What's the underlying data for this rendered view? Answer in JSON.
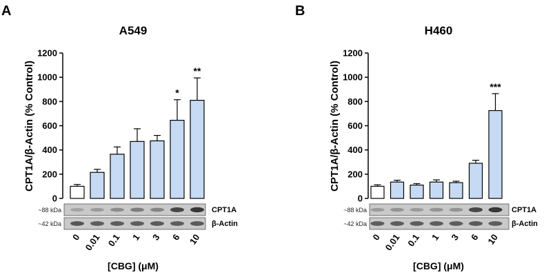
{
  "chart_data": [
    {
      "type": "bar",
      "panel": "A",
      "title": "A549",
      "ylabel": "CPT1A/β-Actin (% Control)",
      "xlabel": "[CBG] (μM)",
      "categories": [
        "0",
        "0.01",
        "0.1",
        "1",
        "3",
        "6",
        "10"
      ],
      "values": [
        100,
        215,
        365,
        470,
        475,
        645,
        810
      ],
      "errors": [
        15,
        25,
        60,
        105,
        45,
        170,
        185
      ],
      "significance": [
        "",
        "",
        "",
        "",
        "",
        "*",
        "**"
      ],
      "ylim": [
        0,
        1200
      ],
      "yticks": [
        0,
        200,
        400,
        600,
        800,
        1000,
        1200
      ],
      "bar_colors": [
        "#ffffff",
        "#c6dbf3",
        "#c6dbf3",
        "#c6dbf3",
        "#c6dbf3",
        "#c6dbf3",
        "#c6dbf3"
      ],
      "blot": {
        "rows": [
          {
            "kda": "~88 kDa",
            "protein": "CPT1A",
            "intensity": [
              0.25,
              0.3,
              0.4,
              0.5,
              0.45,
              0.85,
              0.95
            ]
          },
          {
            "kda": "~42 kDa",
            "protein": "β-Actin",
            "intensity": [
              0.75,
              0.7,
              0.7,
              0.7,
              0.72,
              0.7,
              0.72
            ]
          }
        ]
      }
    },
    {
      "type": "bar",
      "panel": "B",
      "title": "H460",
      "ylabel": "CPT1A/β-Actin (% Control)",
      "xlabel": "[CBG] (μM)",
      "categories": [
        "0",
        "0.01",
        "0.1",
        "1",
        "3",
        "6",
        "10"
      ],
      "values": [
        100,
        135,
        110,
        135,
        130,
        290,
        725
      ],
      "errors": [
        12,
        15,
        12,
        18,
        12,
        25,
        140
      ],
      "significance": [
        "",
        "",
        "",
        "",
        "",
        "",
        "***"
      ],
      "ylim": [
        0,
        1200
      ],
      "yticks": [
        0,
        200,
        400,
        600,
        800,
        1000,
        1200
      ],
      "bar_colors": [
        "#ffffff",
        "#c6dbf3",
        "#c6dbf3",
        "#c6dbf3",
        "#c6dbf3",
        "#c6dbf3",
        "#c6dbf3"
      ],
      "blot": {
        "rows": [
          {
            "kda": "~88 kDa",
            "protein": "CPT1A",
            "intensity": [
              0.3,
              0.35,
              0.3,
              0.35,
              0.35,
              0.85,
              0.95
            ]
          },
          {
            "kda": "~42 kDa",
            "protein": "β-Actin",
            "intensity": [
              0.7,
              0.7,
              0.7,
              0.7,
              0.7,
              0.72,
              0.7
            ]
          }
        ]
      }
    }
  ]
}
